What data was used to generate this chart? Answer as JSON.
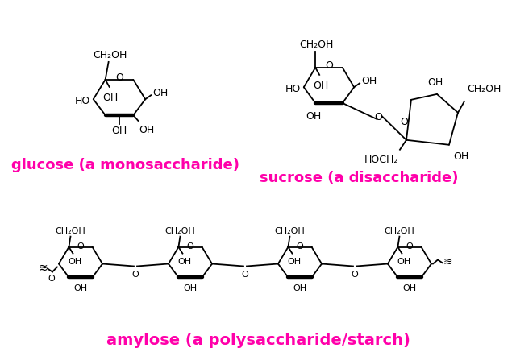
{
  "bg_color": "#ffffff",
  "magenta": "#FF00AA",
  "black": "#000000",
  "label_glucose": "glucose (a monosaccharide)",
  "label_sucrose": "sucrose (a disaccharide)",
  "label_amylose": "amylose (a polysaccharide/starch)",
  "label_fontsize": 13,
  "figsize": [
    6.4,
    4.37
  ],
  "dpi": 100
}
